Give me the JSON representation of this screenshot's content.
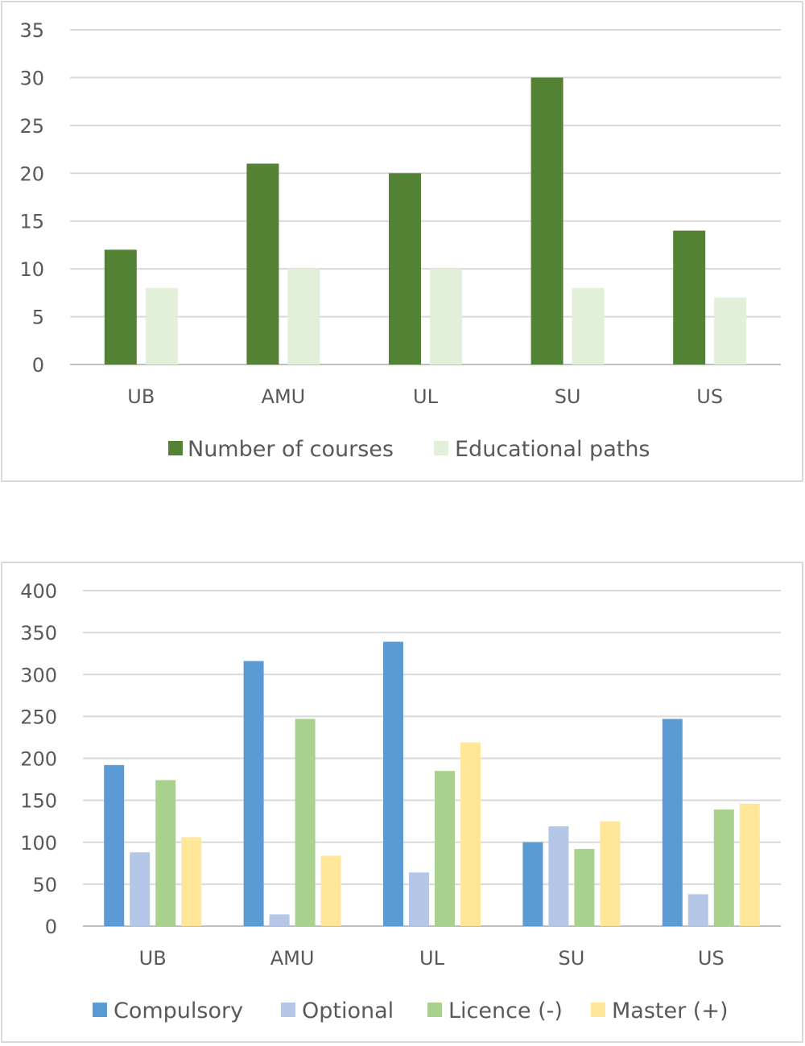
{
  "chart_data": [
    {
      "type": "bar",
      "categories": [
        "UB",
        "AMU",
        "UL",
        "SU",
        "US"
      ],
      "series": [
        {
          "name": "Number of courses",
          "values": [
            12,
            21,
            20,
            30,
            14
          ],
          "color": "#548235"
        },
        {
          "name": "Educational paths",
          "values": [
            8,
            10,
            10,
            8,
            7
          ],
          "color": "#e2efd9"
        }
      ],
      "ylim": [
        0,
        35
      ],
      "yticks": [
        0,
        5,
        10,
        15,
        20,
        25,
        30,
        35
      ],
      "grid": true,
      "legend": "bottom"
    },
    {
      "type": "bar",
      "categories": [
        "UB",
        "AMU",
        "UL",
        "SU",
        "US"
      ],
      "series": [
        {
          "name": "Compulsory",
          "values": [
            192,
            316,
            339,
            100,
            247
          ],
          "color": "#5b9bd5"
        },
        {
          "name": "Optional",
          "values": [
            88,
            14,
            64,
            119,
            38
          ],
          "color": "#b4c7e7"
        },
        {
          "name": "Licence (-)",
          "values": [
            174,
            247,
            185,
            92,
            139
          ],
          "color": "#a9d18e"
        },
        {
          "name": "Master (+)",
          "values": [
            106,
            84,
            219,
            125,
            146
          ],
          "color": "#ffe699"
        }
      ],
      "ylim": [
        0,
        400
      ],
      "yticks": [
        0,
        50,
        100,
        150,
        200,
        250,
        300,
        350,
        400
      ],
      "grid": true,
      "legend": "bottom"
    }
  ]
}
